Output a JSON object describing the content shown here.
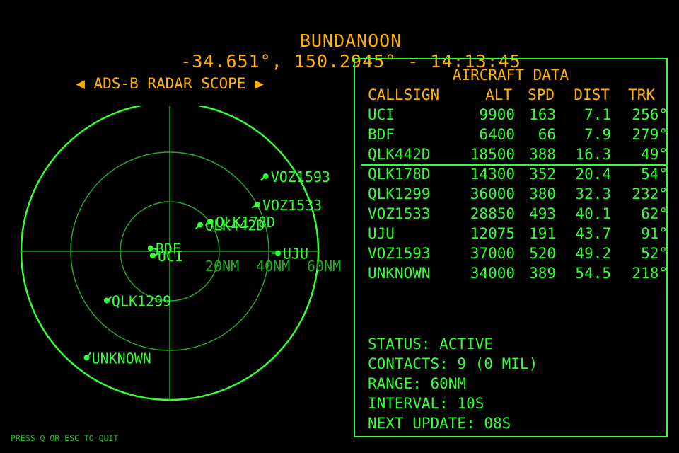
{
  "header": {
    "location": "BUNDANOON",
    "coords": "-34.651°, 150.2945°",
    "time": "14:13:45",
    "separator": " - "
  },
  "scope": {
    "title": "◀ ADS-B RADAR SCOPE ▶",
    "range_nm": 60,
    "ring_labels": [
      "20NM",
      "40NM",
      "60NM"
    ],
    "color": "#33ff33",
    "grid_color": "#22aa22"
  },
  "panel": {
    "title": "AIRCRAFT DATA",
    "columns": [
      "CALLSIGN",
      "ALT",
      "SPD",
      "DIST",
      "TRK"
    ]
  },
  "aircraft": [
    {
      "callsign": "UCI",
      "alt": "9900",
      "spd": "163",
      "dist": "7.1",
      "trk": "256°",
      "dist_nm": 7.1,
      "bearing": 256
    },
    {
      "callsign": "BDF",
      "alt": "6400",
      "spd": "66",
      "dist": "7.9",
      "trk": "279°",
      "dist_nm": 7.9,
      "bearing": 279
    },
    {
      "callsign": "QLK442D",
      "alt": "18500",
      "spd": "388",
      "dist": "16.3",
      "trk": "49°",
      "dist_nm": 16.3,
      "bearing": 49
    },
    {
      "callsign": "QLK178D",
      "alt": "14300",
      "spd": "352",
      "dist": "20.4",
      "trk": "54°",
      "dist_nm": 20.4,
      "bearing": 54
    },
    {
      "callsign": "QLK1299",
      "alt": "36000",
      "spd": "380",
      "dist": "32.3",
      "trk": "232°",
      "dist_nm": 32.3,
      "bearing": 232
    },
    {
      "callsign": "VOZ1533",
      "alt": "28850",
      "spd": "493",
      "dist": "40.1",
      "trk": "62°",
      "dist_nm": 40.1,
      "bearing": 62
    },
    {
      "callsign": "UJU",
      "alt": "12075",
      "spd": "191",
      "dist": "43.7",
      "trk": "91°",
      "dist_nm": 43.7,
      "bearing": 91
    },
    {
      "callsign": "VOZ1593",
      "alt": "37000",
      "spd": "520",
      "dist": "49.2",
      "trk": "52°",
      "dist_nm": 49.2,
      "bearing": 52
    },
    {
      "callsign": "UNKNOWN",
      "alt": "34000",
      "spd": "389",
      "dist": "54.5",
      "trk": "218°",
      "dist_nm": 54.5,
      "bearing": 218
    }
  ],
  "status": {
    "status": "STATUS: ACTIVE",
    "contacts": "CONTACTS: 9 (0 MIL)",
    "range": "RANGE: 60NM",
    "interval": "INTERVAL: 10S",
    "next_update": "NEXT UPDATE: 08S"
  },
  "footer": {
    "quit_hint": "PRESS Q OR ESC TO QUIT"
  }
}
